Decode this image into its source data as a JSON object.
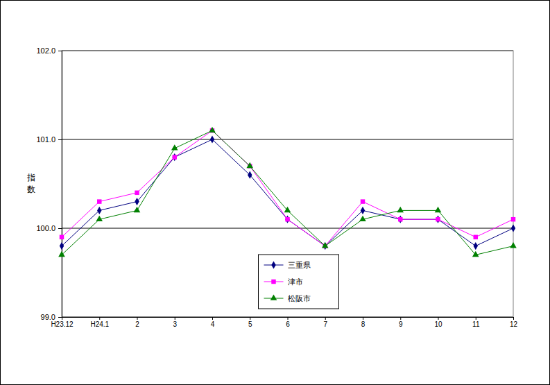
{
  "chart_data": {
    "type": "line",
    "y_label": "指数",
    "categories": [
      "H23.12",
      "H24.1",
      "2",
      "3",
      "4",
      "5",
      "6",
      "7",
      "8",
      "9",
      "10",
      "11",
      "12"
    ],
    "series": [
      {
        "name": "三重県",
        "color": "#000080",
        "marker": "diamond",
        "values": [
          99.8,
          100.2,
          100.3,
          100.8,
          101.0,
          100.6,
          100.1,
          99.8,
          100.2,
          100.1,
          100.1,
          99.8,
          100.0
        ]
      },
      {
        "name": "津市",
        "color": "#ff00ff",
        "marker": "square",
        "values": [
          99.9,
          100.3,
          100.4,
          100.8,
          101.1,
          100.7,
          100.1,
          99.8,
          100.3,
          100.1,
          100.1,
          99.9,
          100.1
        ]
      },
      {
        "name": "松阪市",
        "color": "#008000",
        "marker": "triangle",
        "values": [
          99.7,
          100.1,
          100.2,
          100.9,
          101.1,
          100.7,
          100.2,
          99.8,
          100.1,
          100.2,
          100.2,
          99.7,
          99.8
        ]
      }
    ],
    "ylim": [
      99.0,
      102.0
    ],
    "yticks": [
      {
        "value": 99,
        "label": "99.0"
      },
      {
        "value": 100,
        "label": "100.0"
      },
      {
        "value": 101,
        "label": "101.0"
      },
      {
        "value": 102,
        "label": "102.0"
      }
    ],
    "grid": true,
    "legend": "bottom-center"
  }
}
